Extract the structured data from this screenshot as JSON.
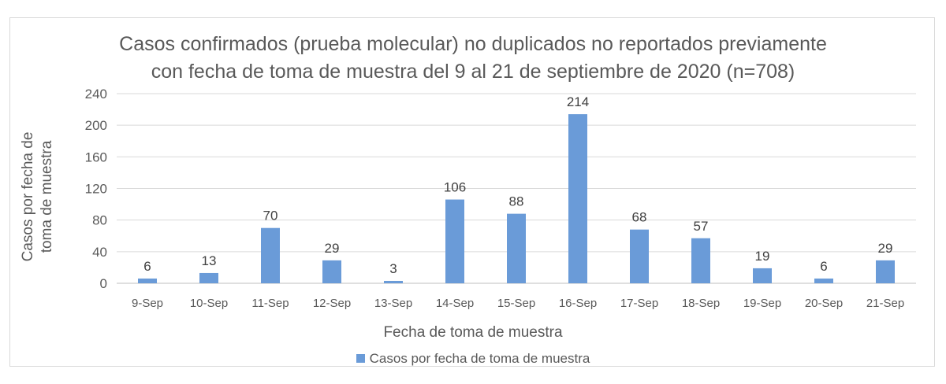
{
  "chart_data": {
    "type": "bar",
    "title": "Casos confirmados (prueba molecular) no duplicados no reportados previamente con fecha de toma de muestra del 9 al 21 de septiembre de 2020 (n=708)",
    "title_lines": [
      "Casos confirmados (prueba molecular) no duplicados no reportados previamente",
      "con fecha de toma de muestra del 9 al 21 de septiembre de 2020 (n=708)"
    ],
    "xlabel": "Fecha de toma de muestra",
    "ylabel_lines": [
      "Casos por fecha de",
      "toma de muestra"
    ],
    "categories": [
      "9-Sep",
      "10-Sep",
      "11-Sep",
      "12-Sep",
      "13-Sep",
      "14-Sep",
      "15-Sep",
      "16-Sep",
      "17-Sep",
      "18-Sep",
      "19-Sep",
      "20-Sep",
      "21-Sep"
    ],
    "series": [
      {
        "name": "Casos por fecha de toma de muestra",
        "values": [
          6,
          13,
          70,
          29,
          3,
          106,
          88,
          214,
          68,
          57,
          19,
          6,
          29
        ],
        "color": "#6a9bd8"
      }
    ],
    "ylim": [
      0,
      240
    ],
    "yticks": [
      0,
      40,
      80,
      120,
      160,
      200,
      240
    ],
    "grid": true,
    "legend_position": "bottom",
    "data_labels": true
  }
}
